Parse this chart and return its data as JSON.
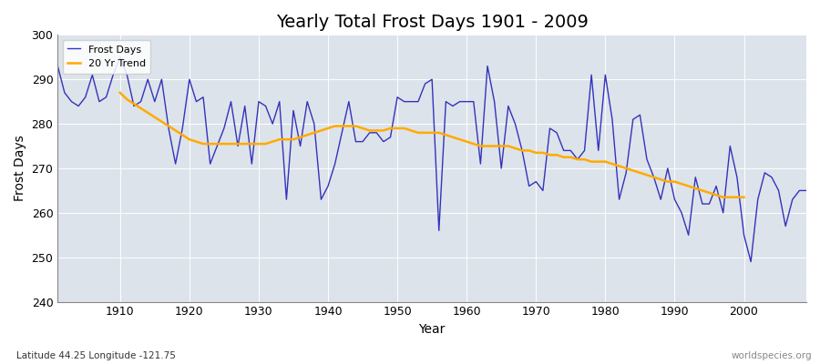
{
  "title": "Yearly Total Frost Days 1901 - 2009",
  "xlabel": "Year",
  "ylabel": "Frost Days",
  "xlim": [
    1901,
    2009
  ],
  "ylim": [
    240,
    300
  ],
  "yticks": [
    240,
    250,
    260,
    270,
    280,
    290,
    300
  ],
  "xticks": [
    1910,
    1920,
    1930,
    1940,
    1950,
    1960,
    1970,
    1980,
    1990,
    2000
  ],
  "plot_bg_color": "#dde3ea",
  "fig_bg_color": "#ffffff",
  "line_color": "#3333bb",
  "trend_color": "#ffaa00",
  "footnote_left": "Latitude 44.25 Longitude -121.75",
  "footnote_right": "worldspecies.org",
  "legend_labels": [
    "Frost Days",
    "20 Yr Trend"
  ],
  "years": [
    1901,
    1902,
    1903,
    1904,
    1905,
    1906,
    1907,
    1908,
    1909,
    1910,
    1911,
    1912,
    1913,
    1914,
    1915,
    1916,
    1917,
    1918,
    1919,
    1920,
    1921,
    1922,
    1923,
    1924,
    1925,
    1926,
    1927,
    1928,
    1929,
    1930,
    1931,
    1932,
    1933,
    1934,
    1935,
    1936,
    1937,
    1938,
    1939,
    1940,
    1941,
    1942,
    1943,
    1944,
    1945,
    1946,
    1947,
    1948,
    1949,
    1950,
    1951,
    1952,
    1953,
    1954,
    1955,
    1956,
    1957,
    1958,
    1959,
    1960,
    1961,
    1962,
    1963,
    1964,
    1965,
    1966,
    1967,
    1968,
    1969,
    1970,
    1971,
    1972,
    1973,
    1974,
    1975,
    1976,
    1977,
    1978,
    1979,
    1980,
    1981,
    1982,
    1983,
    1984,
    1985,
    1986,
    1987,
    1988,
    1989,
    1990,
    1991,
    1992,
    1993,
    1994,
    1995,
    1996,
    1997,
    1998,
    1999,
    2000,
    2001,
    2002,
    2003,
    2004,
    2005,
    2006,
    2007,
    2008,
    2009
  ],
  "frost_days": [
    293,
    287,
    285,
    284,
    286,
    291,
    285,
    286,
    291,
    295,
    291,
    284,
    285,
    290,
    285,
    290,
    279,
    271,
    279,
    290,
    285,
    286,
    271,
    275,
    279,
    285,
    275,
    284,
    271,
    285,
    284,
    280,
    285,
    263,
    283,
    275,
    285,
    280,
    263,
    266,
    271,
    278,
    285,
    276,
    276,
    278,
    278,
    276,
    277,
    286,
    285,
    285,
    285,
    289,
    290,
    256,
    285,
    284,
    285,
    285,
    285,
    271,
    293,
    285,
    270,
    284,
    280,
    274,
    266,
    267,
    265,
    279,
    278,
    274,
    274,
    272,
    274,
    291,
    274,
    291,
    281,
    263,
    269,
    281,
    282,
    272,
    268,
    263,
    270,
    263,
    260,
    255,
    268,
    262,
    262,
    266,
    260,
    275,
    268,
    255,
    249,
    263,
    269,
    268,
    265,
    257,
    263,
    265,
    265
  ],
  "trend_years": [
    1910,
    1911,
    1912,
    1913,
    1914,
    1915,
    1916,
    1917,
    1918,
    1919,
    1920,
    1921,
    1922,
    1923,
    1924,
    1925,
    1926,
    1927,
    1928,
    1929,
    1930,
    1931,
    1932,
    1933,
    1934,
    1935,
    1936,
    1937,
    1938,
    1939,
    1940,
    1941,
    1942,
    1943,
    1944,
    1945,
    1946,
    1947,
    1948,
    1949,
    1950,
    1951,
    1952,
    1953,
    1954,
    1955,
    1956,
    1957,
    1958,
    1959,
    1960,
    1961,
    1962,
    1963,
    1964,
    1965,
    1966,
    1967,
    1968,
    1969,
    1970,
    1971,
    1972,
    1973,
    1974,
    1975,
    1976,
    1977,
    1978,
    1979,
    1980,
    1981,
    1982,
    1983,
    1984,
    1985,
    1986,
    1987,
    1988,
    1989,
    1990,
    1991,
    1992,
    1993,
    1994,
    1995,
    1996,
    1997,
    1998,
    1999,
    2000
  ],
  "trend_values": [
    287.0,
    285.5,
    284.5,
    283.5,
    282.5,
    281.5,
    280.5,
    279.5,
    278.5,
    277.5,
    276.5,
    276.0,
    275.5,
    275.5,
    275.5,
    275.5,
    275.5,
    275.5,
    275.5,
    275.5,
    275.5,
    275.5,
    276.0,
    276.5,
    276.5,
    276.5,
    277.0,
    277.5,
    278.0,
    278.5,
    279.0,
    279.5,
    279.5,
    279.5,
    279.5,
    279.0,
    278.5,
    278.5,
    278.5,
    279.0,
    279.0,
    279.0,
    278.5,
    278.0,
    278.0,
    278.0,
    278.0,
    277.5,
    277.0,
    276.5,
    276.0,
    275.5,
    275.0,
    275.0,
    275.0,
    275.0,
    275.0,
    274.5,
    274.0,
    274.0,
    273.5,
    273.5,
    273.0,
    273.0,
    272.5,
    272.5,
    272.0,
    272.0,
    271.5,
    271.5,
    271.5,
    271.0,
    270.5,
    270.0,
    269.5,
    269.0,
    268.5,
    268.0,
    267.5,
    267.0,
    267.0,
    266.5,
    266.0,
    265.5,
    265.0,
    264.5,
    264.0,
    263.5,
    263.5,
    263.5,
    263.5
  ]
}
